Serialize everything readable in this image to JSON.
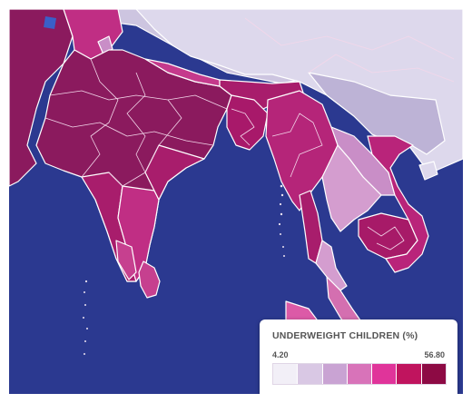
{
  "map": {
    "ocean_color": "#2b3990",
    "land_colors": {
      "north_pale": "#cdc5e0",
      "china": "#ddd8ec",
      "china_south": "#bdb3d6",
      "india_dark": "#8b1a5e",
      "india_mid": "#a81d6c",
      "india_light": "#c02e84",
      "nepal_bhutan": "#c53a8c",
      "bangladesh": "#a8196a",
      "myanmar": "#b52579",
      "laos": "#c98ec7",
      "thailand": "#d49dcf",
      "vietnam": "#b9247a",
      "cambodia": "#a71a68",
      "sri_lanka": "#c6408f",
      "malay_peninsula": "#d46fb0",
      "sumatra": "#dc5aa7"
    }
  },
  "legend": {
    "title": "UNDERWEIGHT CHILDREN (%)",
    "min_label": "4.20",
    "max_label": "56.80",
    "colors": [
      "#f2eff7",
      "#d9c8e4",
      "#c9a3d3",
      "#d873b9",
      "#e0349a",
      "#c0145e",
      "#8d0a44"
    ]
  }
}
